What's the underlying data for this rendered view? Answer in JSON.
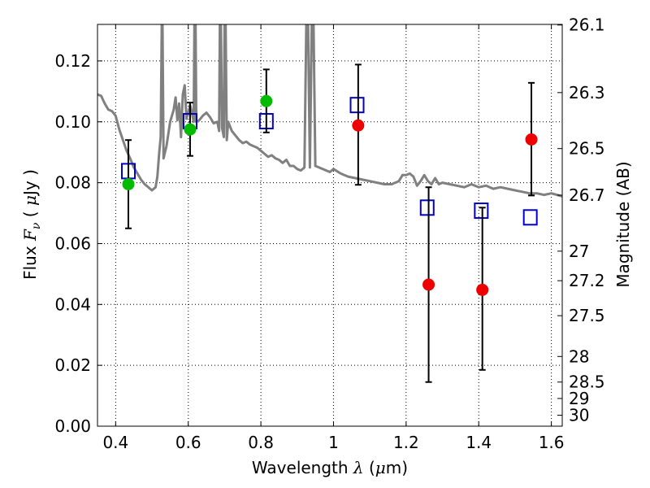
{
  "chart_data": {
    "type": "scatter",
    "xlabel": {
      "prefix": "Wavelength ",
      "symbol": "λ",
      "unit_open": " (",
      "unit_math": "μ",
      "unit_close": "m)"
    },
    "ylabel": {
      "prefix": "Flux ",
      "symbol": "F",
      "subscript": "ν",
      "unit_open": " ( ",
      "unit_math": "μ",
      "unit_close": "Jy )"
    },
    "y2label": "Magnitude (AB)",
    "xlim": [
      0.35,
      1.63
    ],
    "ylim": [
      0.0,
      0.132
    ],
    "xticks": [
      0.4,
      0.6,
      0.8,
      1.0,
      1.2,
      1.4,
      1.6
    ],
    "xtick_labels": [
      "0.4",
      "0.6",
      "0.8",
      "1",
      "1.2",
      "1.4",
      "1.6"
    ],
    "yticks": [
      0.0,
      0.02,
      0.04,
      0.06,
      0.08,
      0.1,
      0.12
    ],
    "ytick_labels": [
      "0.00",
      "0.02",
      "0.04",
      "0.06",
      "0.08",
      "0.10",
      "0.12"
    ],
    "y2ticks": [
      {
        "flux": 0.1318,
        "label": "26.1"
      },
      {
        "flux": 0.1096,
        "label": "26.3"
      },
      {
        "flux": 0.0912,
        "label": "26.5"
      },
      {
        "flux": 0.0759,
        "label": "26.7"
      },
      {
        "flux": 0.0575,
        "label": "27"
      },
      {
        "flux": 0.0478,
        "label": "27.2"
      },
      {
        "flux": 0.0363,
        "label": "27.5"
      },
      {
        "flux": 0.0229,
        "label": "28"
      },
      {
        "flux": 0.0145,
        "label": "28.5"
      },
      {
        "flux": 0.0091,
        "label": "29"
      },
      {
        "flux": 0.0036,
        "label": "30"
      }
    ],
    "grid": true,
    "colors": {
      "sed": "#808080",
      "model": "#0000cc",
      "green": "#00bb00",
      "red": "#ee0000",
      "errorbar": "#000000"
    },
    "sed_curve": [
      [
        0.35,
        0.109
      ],
      [
        0.36,
        0.1085
      ],
      [
        0.37,
        0.106
      ],
      [
        0.38,
        0.104
      ],
      [
        0.39,
        0.1035
      ],
      [
        0.4,
        0.102
      ],
      [
        0.41,
        0.0975
      ],
      [
        0.42,
        0.094
      ],
      [
        0.43,
        0.0905
      ],
      [
        0.44,
        0.088
      ],
      [
        0.45,
        0.085
      ],
      [
        0.46,
        0.083
      ],
      [
        0.47,
        0.081
      ],
      [
        0.48,
        0.0795
      ],
      [
        0.49,
        0.0785
      ],
      [
        0.5,
        0.0775
      ],
      [
        0.51,
        0.0785
      ],
      [
        0.515,
        0.082
      ],
      [
        0.52,
        0.09
      ],
      [
        0.524,
        0.095
      ],
      [
        0.527,
        0.132
      ],
      [
        0.529,
        0.132
      ],
      [
        0.532,
        0.088
      ],
      [
        0.54,
        0.092
      ],
      [
        0.55,
        0.1
      ],
      [
        0.56,
        0.104
      ],
      [
        0.565,
        0.108
      ],
      [
        0.57,
        0.1005
      ],
      [
        0.575,
        0.106
      ],
      [
        0.58,
        0.095
      ],
      [
        0.585,
        0.109
      ],
      [
        0.59,
        0.112
      ],
      [
        0.595,
        0.101
      ],
      [
        0.6,
        0.103
      ],
      [
        0.605,
        0.1055
      ],
      [
        0.61,
        0.103
      ],
      [
        0.615,
        0.1
      ],
      [
        0.617,
        0.132
      ],
      [
        0.62,
        0.132
      ],
      [
        0.622,
        0.1
      ],
      [
        0.63,
        0.1005
      ],
      [
        0.64,
        0.102
      ],
      [
        0.65,
        0.103
      ],
      [
        0.66,
        0.1015
      ],
      [
        0.67,
        0.0995
      ],
      [
        0.68,
        0.1
      ],
      [
        0.685,
        0.097
      ],
      [
        0.687,
        0.132
      ],
      [
        0.69,
        0.132
      ],
      [
        0.693,
        0.098
      ],
      [
        0.698,
        0.095
      ],
      [
        0.7,
        0.132
      ],
      [
        0.703,
        0.132
      ],
      [
        0.706,
        0.094
      ],
      [
        0.71,
        0.1
      ],
      [
        0.72,
        0.097
      ],
      [
        0.73,
        0.0955
      ],
      [
        0.74,
        0.094
      ],
      [
        0.75,
        0.093
      ],
      [
        0.76,
        0.0935
      ],
      [
        0.77,
        0.0925
      ],
      [
        0.78,
        0.092
      ],
      [
        0.79,
        0.0915
      ],
      [
        0.8,
        0.0905
      ],
      [
        0.81,
        0.0895
      ],
      [
        0.82,
        0.0885
      ],
      [
        0.83,
        0.089
      ],
      [
        0.84,
        0.088
      ],
      [
        0.85,
        0.0875
      ],
      [
        0.86,
        0.0865
      ],
      [
        0.87,
        0.0875
      ],
      [
        0.88,
        0.0855
      ],
      [
        0.89,
        0.0855
      ],
      [
        0.9,
        0.0845
      ],
      [
        0.91,
        0.084
      ],
      [
        0.92,
        0.085
      ],
      [
        0.925,
        0.132
      ],
      [
        0.93,
        0.132
      ],
      [
        0.935,
        0.085
      ],
      [
        0.94,
        0.132
      ],
      [
        0.945,
        0.132
      ],
      [
        0.95,
        0.0855
      ],
      [
        0.96,
        0.085
      ],
      [
        0.97,
        0.0845
      ],
      [
        0.98,
        0.084
      ],
      [
        0.99,
        0.0835
      ],
      [
        1.0,
        0.0845
      ],
      [
        1.02,
        0.083
      ],
      [
        1.04,
        0.082
      ],
      [
        1.06,
        0.0815
      ],
      [
        1.08,
        0.081
      ],
      [
        1.1,
        0.0805
      ],
      [
        1.12,
        0.08
      ],
      [
        1.14,
        0.0795
      ],
      [
        1.16,
        0.0795
      ],
      [
        1.18,
        0.0805
      ],
      [
        1.19,
        0.0825
      ],
      [
        1.2,
        0.0825
      ],
      [
        1.21,
        0.083
      ],
      [
        1.22,
        0.082
      ],
      [
        1.23,
        0.079
      ],
      [
        1.24,
        0.0805
      ],
      [
        1.25,
        0.0825
      ],
      [
        1.26,
        0.0805
      ],
      [
        1.27,
        0.0795
      ],
      [
        1.28,
        0.0815
      ],
      [
        1.29,
        0.0795
      ],
      [
        1.3,
        0.08
      ],
      [
        1.32,
        0.0795
      ],
      [
        1.34,
        0.079
      ],
      [
        1.36,
        0.0785
      ],
      [
        1.38,
        0.0795
      ],
      [
        1.4,
        0.0785
      ],
      [
        1.42,
        0.079
      ],
      [
        1.44,
        0.078
      ],
      [
        1.46,
        0.0785
      ],
      [
        1.48,
        0.078
      ],
      [
        1.5,
        0.0775
      ],
      [
        1.52,
        0.077
      ],
      [
        1.54,
        0.0765
      ],
      [
        1.56,
        0.0765
      ],
      [
        1.58,
        0.076
      ],
      [
        1.6,
        0.0765
      ],
      [
        1.63,
        0.0755
      ]
    ],
    "series": [
      {
        "marker": "square",
        "color": "#0000cc",
        "points": [
          {
            "x": 0.435,
            "y": 0.0838
          },
          {
            "x": 0.605,
            "y": 0.1002
          },
          {
            "x": 0.815,
            "y": 0.1002
          },
          {
            "x": 1.065,
            "y": 0.1055
          },
          {
            "x": 1.258,
            "y": 0.0718
          },
          {
            "x": 1.407,
            "y": 0.0708
          },
          {
            "x": 1.542,
            "y": 0.0686
          }
        ]
      },
      {
        "marker": "circle",
        "color": "#00bb00",
        "points": [
          {
            "x": 0.435,
            "y": 0.0795,
            "yerr_low": 0.065,
            "yerr_high": 0.094
          },
          {
            "x": 0.605,
            "y": 0.0975,
            "yerr_low": 0.0888,
            "yerr_high": 0.1063
          },
          {
            "x": 0.815,
            "y": 0.1068,
            "yerr_low": 0.0965,
            "yerr_high": 0.1172
          }
        ]
      },
      {
        "marker": "circle",
        "color": "#ee0000",
        "points": [
          {
            "x": 1.068,
            "y": 0.0988,
            "yerr_low": 0.0793,
            "yerr_high": 0.1188
          },
          {
            "x": 1.262,
            "y": 0.0465,
            "yerr_low": 0.0145,
            "yerr_high": 0.0785
          },
          {
            "x": 1.41,
            "y": 0.0448,
            "yerr_low": 0.0185,
            "yerr_high": 0.0718
          },
          {
            "x": 1.545,
            "y": 0.0942,
            "yerr_low": 0.0758,
            "yerr_high": 0.1128
          }
        ]
      }
    ]
  }
}
